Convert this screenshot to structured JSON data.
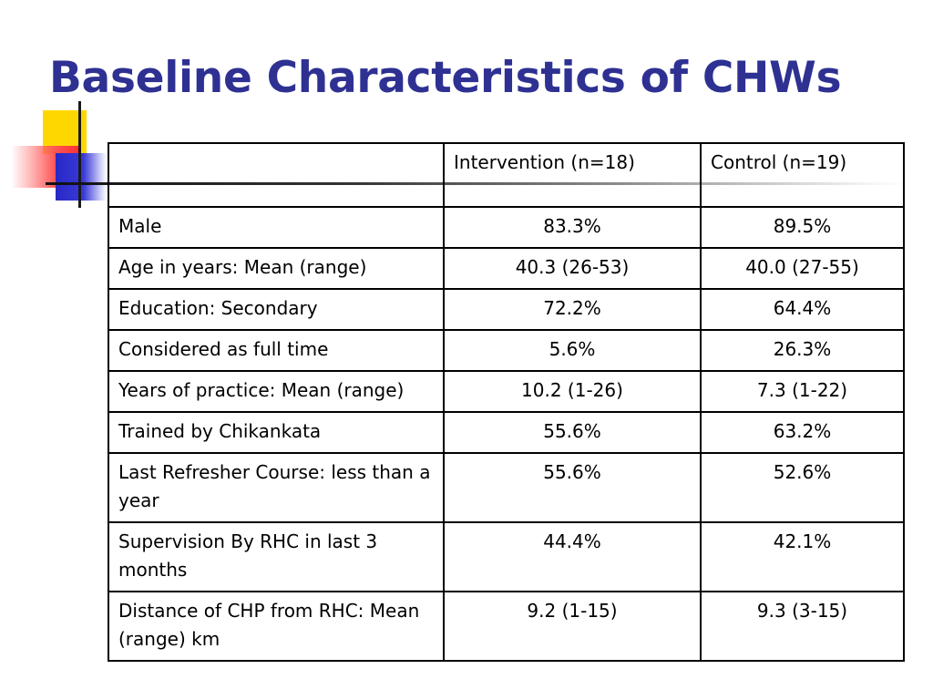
{
  "slide": {
    "title": "Baseline Characteristics of CHWs"
  },
  "table": {
    "headers": [
      "",
      "Intervention (n=18)",
      "Control (n=19)"
    ],
    "rows": [
      {
        "label": "Male",
        "intervention": "83.3%",
        "control": "89.5%"
      },
      {
        "label": "Age in years: Mean (range)",
        "intervention": "40.3 (26-53)",
        "control": "40.0 (27-55)"
      },
      {
        "label": "Education: Secondary",
        "intervention": "72.2%",
        "control": "64.4%"
      },
      {
        "label": "Considered as full time",
        "intervention": "5.6%",
        "control": "26.3%"
      },
      {
        "label": "Years of practice: Mean (range)",
        "intervention": "10.2 (1-26)",
        "control": "7.3 (1-22)"
      },
      {
        "label": "Trained by Chikankata",
        "intervention": "55.6%",
        "control": "63.2%"
      },
      {
        "label": "Last Refresher Course: less than a year",
        "intervention": "55.6%",
        "control": "52.6%"
      },
      {
        "label": "Supervision By RHC in last 3 months",
        "intervention": "44.4%",
        "control": "42.1%"
      },
      {
        "label": "Distance of CHP from RHC: Mean (range) km",
        "intervention": "9.2 (1-15)",
        "control": "9.3 (3-15)"
      }
    ]
  },
  "colors": {
    "title": "#2e3192",
    "accent_yellow": "#ffd700",
    "accent_red": "#ff3030",
    "accent_blue": "#2828c8"
  }
}
